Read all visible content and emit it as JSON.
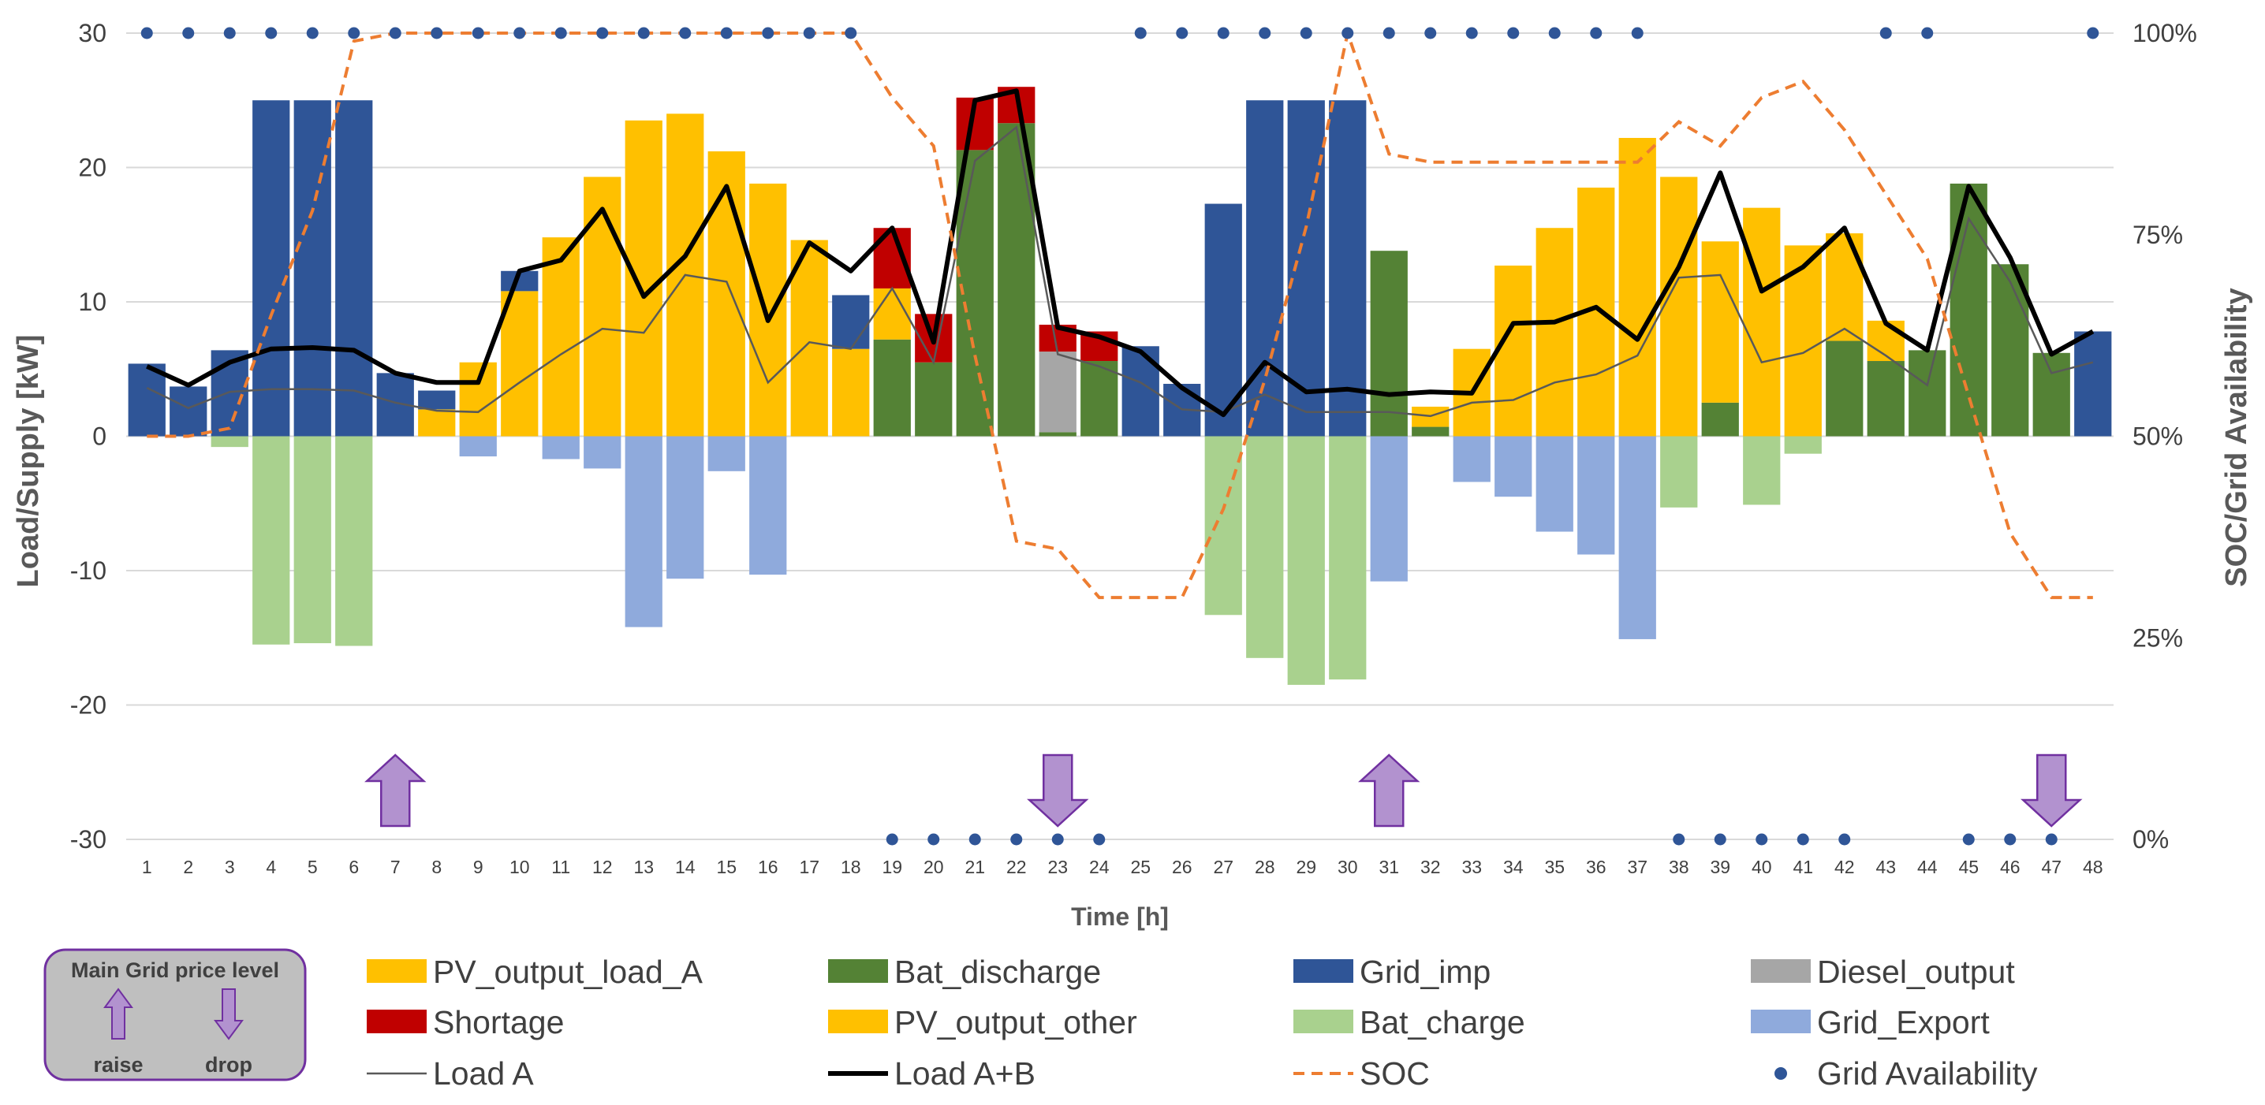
{
  "chart_data": {
    "type": "bar",
    "title": "",
    "xlabel": "Time [h]",
    "ylabel": "Load/Supply [kW]",
    "y2label": "SOC/Grid Availability",
    "ylim": [
      -30,
      30
    ],
    "y2lim": [
      0,
      100
    ],
    "yticks": [
      "30",
      "20",
      "10",
      "0",
      "-10",
      "-20",
      "-30"
    ],
    "y2ticks": [
      "100%",
      "75%",
      "50%",
      "25%",
      "0%"
    ],
    "categories": [
      "1",
      "2",
      "3",
      "4",
      "5",
      "6",
      "7",
      "8",
      "9",
      "10",
      "11",
      "12",
      "13",
      "14",
      "15",
      "16",
      "17",
      "18",
      "19",
      "20",
      "21",
      "22",
      "23",
      "24",
      "25",
      "26",
      "27",
      "28",
      "29",
      "30",
      "31",
      "32",
      "33",
      "34",
      "35",
      "36",
      "37",
      "38",
      "39",
      "40",
      "41",
      "42",
      "43",
      "44",
      "45",
      "46",
      "47",
      "48"
    ],
    "colors": {
      "PV_output_load_A": "#FFC000",
      "Shortage": "#C00000",
      "Bat_discharge": "#548235",
      "PV_output_other": "#FFC000",
      "Grid_imp": "#2F5597",
      "Bat_charge": "#A9D18E",
      "Diesel_output": "#A6A6A6",
      "Grid_Export": "#8FAADC",
      "Load A": "#595959",
      "Load A+B": "#000000",
      "SOC": "#ED7D31",
      "Grid Availability": "#2F5597",
      "arrow_fill": "#B292CF",
      "arrow_stroke": "#7030A0"
    },
    "stack_order": [
      "Bat_discharge",
      "PV_output_load_A",
      "Diesel_output",
      "Grid_imp",
      "Shortage"
    ],
    "series": [
      {
        "name": "Grid_imp",
        "values": [
          5.4,
          3.7,
          6.4,
          25,
          25,
          25,
          4.7,
          1.4,
          0,
          1.5,
          0,
          0,
          0,
          0,
          0,
          0,
          0,
          4,
          0,
          0,
          0,
          0,
          0,
          0,
          6.7,
          3.9,
          17.3,
          25,
          25,
          25,
          0,
          0,
          0,
          0,
          0,
          0,
          0,
          0,
          0,
          0,
          0,
          0,
          0,
          0,
          0,
          0,
          0,
          7.8
        ]
      },
      {
        "name": "PV_output_load_A",
        "values": [
          0,
          0,
          0,
          0,
          0,
          0,
          0,
          2,
          5.5,
          10.8,
          14.8,
          19.3,
          23.5,
          24,
          21.2,
          18.8,
          14.6,
          6.5,
          3.8,
          0,
          0,
          0,
          0,
          0,
          0,
          0,
          0,
          0,
          0,
          0,
          0,
          1.5,
          6.5,
          12.7,
          15.5,
          18.5,
          22.2,
          19.3,
          12,
          17,
          14.2,
          8,
          3,
          0,
          0,
          0,
          0,
          0
        ]
      },
      {
        "name": "Bat_discharge",
        "values": [
          0,
          0,
          0,
          0,
          0,
          0,
          0,
          0,
          0,
          0,
          0,
          0,
          0,
          0,
          0,
          0,
          0,
          0,
          7.2,
          5.5,
          21.3,
          23.3,
          0.3,
          5.6,
          0,
          0,
          0,
          0,
          0,
          0,
          13.8,
          0.7,
          0,
          0,
          0,
          0,
          0,
          0,
          2.5,
          0,
          0,
          7.1,
          5.6,
          6.4,
          18.8,
          12.8,
          6.2,
          0
        ]
      },
      {
        "name": "Diesel_output",
        "values": [
          0,
          0,
          0,
          0,
          0,
          0,
          0,
          0,
          0,
          0,
          0,
          0,
          0,
          0,
          0,
          0,
          0,
          0,
          0,
          0,
          0,
          0,
          6,
          0,
          0,
          0,
          0,
          0,
          0,
          0,
          0,
          0,
          0,
          0,
          0,
          0,
          0,
          0,
          0,
          0,
          0,
          0,
          0,
          0,
          0,
          0,
          0,
          0
        ]
      },
      {
        "name": "Shortage",
        "values": [
          0,
          0,
          0,
          0,
          0,
          0,
          0,
          0,
          0,
          0,
          0,
          0,
          0,
          0,
          0,
          0,
          0,
          0,
          4.5,
          3.6,
          3.9,
          2.7,
          2,
          2.2,
          0,
          0,
          0,
          0,
          0,
          0,
          0,
          0,
          0,
          0,
          0,
          0,
          0,
          0,
          0,
          0,
          0,
          0,
          0,
          0,
          0,
          0,
          0,
          0
        ]
      },
      {
        "name": "Bat_charge",
        "values": [
          0,
          0,
          -0.8,
          -15.5,
          -15.4,
          -15.6,
          0,
          0,
          0,
          0,
          0,
          0,
          0,
          0,
          0,
          0,
          0,
          0,
          0,
          0,
          0,
          0,
          0,
          0,
          0,
          0,
          -13.3,
          -16.5,
          -18.5,
          -18.1,
          0,
          0,
          0,
          0,
          0,
          0,
          0,
          -5.3,
          0,
          -5.1,
          -1.3,
          0,
          0,
          0,
          0,
          0,
          0,
          0
        ]
      },
      {
        "name": "Grid_Export",
        "values": [
          0,
          0,
          0,
          0,
          0,
          0,
          0,
          0,
          -1.5,
          0,
          -1.7,
          -2.4,
          -14.2,
          -10.6,
          -2.6,
          -10.3,
          0,
          0,
          0,
          0,
          0,
          0,
          0,
          0,
          0,
          0,
          0,
          0,
          0,
          0,
          -10.8,
          0,
          -3.4,
          -4.5,
          -7.1,
          -8.8,
          -15.1,
          0,
          0,
          0,
          0,
          0,
          0,
          0,
          0,
          0,
          0,
          0
        ]
      },
      {
        "name": "Load A",
        "values": [
          3.6,
          2.1,
          3.3,
          3.5,
          3.5,
          3.4,
          2.5,
          1.9,
          1.8,
          4,
          6.1,
          8,
          7.7,
          12,
          11.5,
          4,
          7,
          6.5,
          11,
          5.5,
          20.5,
          23,
          6.1,
          5.2,
          4,
          2,
          1.8,
          3.1,
          1.8,
          1.8,
          1.8,
          1.5,
          2.5,
          2.7,
          4,
          4.6,
          6,
          11.8,
          12,
          5.5,
          6.2,
          8,
          6,
          3.8,
          16.2,
          11.5,
          4.7,
          5.5
        ]
      },
      {
        "name": "Load A+B",
        "values": [
          5.2,
          3.8,
          5.5,
          6.5,
          6.6,
          6.4,
          4.7,
          4,
          4,
          12.3,
          13.1,
          16.9,
          10.4,
          13.4,
          18.6,
          8.6,
          14.4,
          12.3,
          15.5,
          7,
          25,
          25.7,
          8.1,
          7.4,
          6.3,
          3.6,
          1.6,
          5.5,
          3.3,
          3.5,
          3.1,
          3.3,
          3.2,
          8.4,
          8.5,
          9.6,
          7.2,
          12.6,
          19.6,
          10.8,
          12.6,
          15.5,
          8.4,
          6.4,
          18.6,
          13.3,
          6.1,
          7.8
        ]
      }
    ],
    "soc": [
      50,
      50,
      51,
      65,
      78,
      99,
      100,
      100,
      100,
      100,
      100,
      100,
      100,
      100,
      100,
      100,
      100,
      100,
      92,
      86,
      60,
      37,
      36,
      30,
      30,
      30,
      41,
      57,
      76,
      100,
      85,
      84,
      84,
      84,
      84,
      84,
      84,
      89,
      86,
      92,
      94,
      88,
      80,
      72,
      55,
      38,
      30,
      30
    ],
    "grid_availability": [
      1,
      1,
      1,
      1,
      1,
      1,
      1,
      1,
      1,
      1,
      1,
      1,
      1,
      1,
      1,
      1,
      1,
      1,
      0,
      0,
      0,
      0,
      0,
      0,
      1,
      1,
      1,
      1,
      1,
      1,
      1,
      1,
      1,
      1,
      1,
      1,
      1,
      0,
      0,
      0,
      0,
      0,
      1,
      1,
      0,
      0,
      0,
      1
    ],
    "price_arrows": [
      {
        "hour": 7,
        "direction": "raise"
      },
      {
        "hour": 23,
        "direction": "drop"
      },
      {
        "hour": 31,
        "direction": "raise"
      },
      {
        "hour": 47,
        "direction": "drop"
      }
    ],
    "legend_position": "bottom"
  },
  "legend": {
    "items": [
      {
        "label": "PV_output_load_A",
        "kind": "box",
        "series": "PV_output_load_A"
      },
      {
        "label": "Bat_discharge",
        "kind": "box",
        "series": "Bat_discharge"
      },
      {
        "label": "Grid_imp",
        "kind": "box",
        "series": "Grid_imp"
      },
      {
        "label": "Diesel_output",
        "kind": "box",
        "series": "Diesel_output"
      },
      {
        "label": "Shortage",
        "kind": "box",
        "series": "Shortage"
      },
      {
        "label": "PV_output_other",
        "kind": "box",
        "series": "PV_output_other"
      },
      {
        "label": "Bat_charge",
        "kind": "box",
        "series": "Bat_charge"
      },
      {
        "label": "Grid_Export",
        "kind": "box",
        "series": "Grid_Export"
      },
      {
        "label": "Load A",
        "kind": "thin-line",
        "series": "Load A"
      },
      {
        "label": "Load A+B",
        "kind": "thick-line",
        "series": "Load A+B"
      },
      {
        "label": "SOC",
        "kind": "dash-line",
        "series": "SOC"
      },
      {
        "label": "Grid Availability",
        "kind": "dot",
        "series": "Grid Availability"
      }
    ]
  },
  "price_box": {
    "title": "Main Grid price level",
    "raise_label": "raise",
    "drop_label": "drop"
  }
}
